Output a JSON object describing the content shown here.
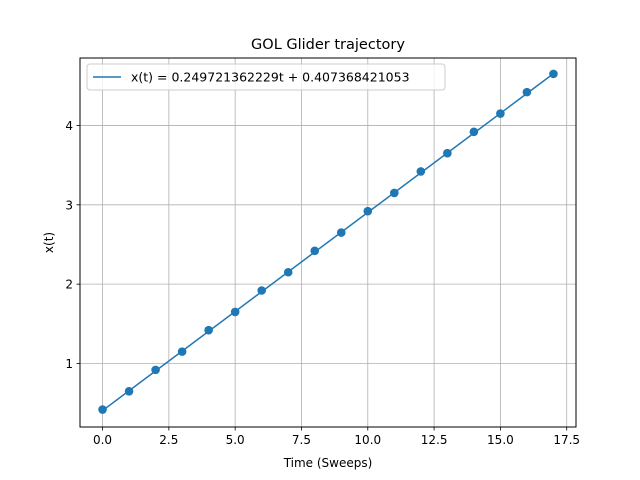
{
  "chart_data": {
    "type": "scatter",
    "title": "GOL Glider trajectory",
    "xlabel": "Time (Sweeps)",
    "ylabel": "x(t)",
    "xlim": [
      -0.85,
      17.85
    ],
    "ylim": [
      0.2,
      4.85
    ],
    "xticks": [
      0.0,
      2.5,
      5.0,
      7.5,
      10.0,
      12.5,
      15.0,
      17.5
    ],
    "xtick_labels": [
      "0.0",
      "2.5",
      "5.0",
      "7.5",
      "10.0",
      "12.5",
      "15.0",
      "17.5"
    ],
    "yticks": [
      1,
      2,
      3,
      4
    ],
    "ytick_labels": [
      "1",
      "2",
      "3",
      "4"
    ],
    "grid": true,
    "legend_position": "upper-left",
    "color": "#1f77b4",
    "series": [
      {
        "name": "x(t) = 0.249721362229t + 0.407368421053",
        "kind": "fit-line",
        "slope": 0.249721362229,
        "intercept": 0.407368421053,
        "x_range": [
          0,
          17
        ]
      },
      {
        "kind": "points",
        "x": [
          0,
          1,
          2,
          3,
          4,
          5,
          6,
          7,
          8,
          9,
          10,
          11,
          12,
          13,
          14,
          15,
          16,
          17
        ],
        "y": [
          0.42,
          0.65,
          0.92,
          1.15,
          1.42,
          1.65,
          1.92,
          2.15,
          2.42,
          2.65,
          2.92,
          3.15,
          3.42,
          3.65,
          3.92,
          4.15,
          4.42,
          4.65
        ]
      }
    ]
  }
}
